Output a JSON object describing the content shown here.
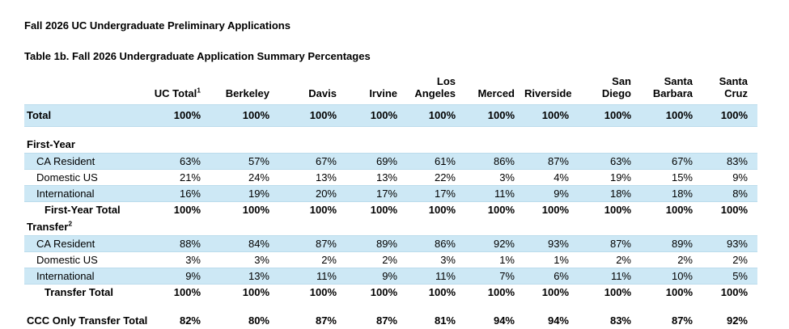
{
  "titles": {
    "report_title": "Fall 2026 UC Undergraduate Preliminary Applications",
    "table_caption": "Table 1b. Fall 2026 Undergraduate Application Summary Percentages"
  },
  "colors": {
    "row_shade": "#cde8f5",
    "row_shade_border": "#bbdcec",
    "text": "#000000",
    "background": "#ffffff"
  },
  "table": {
    "columns": [
      {
        "label": "UC Total",
        "sup": "1"
      },
      {
        "label": "Berkeley"
      },
      {
        "label": "Davis"
      },
      {
        "label": "Irvine"
      },
      {
        "label": "Los\nAngeles"
      },
      {
        "label": "Merced"
      },
      {
        "label": "Riverside"
      },
      {
        "label": "San\nDiego"
      },
      {
        "label": "Santa\nBarbara"
      },
      {
        "label": "Santa\nCruz"
      }
    ],
    "rows": [
      {
        "type": "total",
        "label": "Total",
        "values": [
          "100%",
          "100%",
          "100%",
          "100%",
          "100%",
          "100%",
          "100%",
          "100%",
          "100%",
          "100%"
        ]
      },
      {
        "type": "spacer",
        "size": "sm"
      },
      {
        "type": "section",
        "label": "First-Year"
      },
      {
        "type": "detail",
        "shaded": true,
        "label": "CA Resident",
        "values": [
          "63%",
          "57%",
          "67%",
          "69%",
          "61%",
          "86%",
          "87%",
          "63%",
          "67%",
          "83%"
        ]
      },
      {
        "type": "detail",
        "shaded": false,
        "label": "Domestic US",
        "values": [
          "21%",
          "24%",
          "13%",
          "13%",
          "22%",
          "3%",
          "4%",
          "19%",
          "15%",
          "9%"
        ]
      },
      {
        "type": "detail",
        "shaded": true,
        "label": "International",
        "values": [
          "16%",
          "19%",
          "20%",
          "17%",
          "17%",
          "11%",
          "9%",
          "18%",
          "18%",
          "8%"
        ]
      },
      {
        "type": "subtotal",
        "label": "First-Year Total",
        "values": [
          "100%",
          "100%",
          "100%",
          "100%",
          "100%",
          "100%",
          "100%",
          "100%",
          "100%",
          "100%"
        ]
      },
      {
        "type": "section",
        "label": "Transfer",
        "sup": "2"
      },
      {
        "type": "detail",
        "shaded": true,
        "label": "CA Resident",
        "values": [
          "88%",
          "84%",
          "87%",
          "89%",
          "86%",
          "92%",
          "93%",
          "87%",
          "89%",
          "93%"
        ]
      },
      {
        "type": "detail",
        "shaded": false,
        "label": "Domestic US",
        "values": [
          "3%",
          "3%",
          "2%",
          "2%",
          "3%",
          "1%",
          "1%",
          "2%",
          "2%",
          "2%"
        ]
      },
      {
        "type": "detail",
        "shaded": true,
        "label": "International",
        "values": [
          "9%",
          "13%",
          "11%",
          "9%",
          "11%",
          "7%",
          "6%",
          "11%",
          "10%",
          "5%"
        ]
      },
      {
        "type": "subtotal",
        "label": "Transfer Total",
        "values": [
          "100%",
          "100%",
          "100%",
          "100%",
          "100%",
          "100%",
          "100%",
          "100%",
          "100%",
          "100%"
        ]
      },
      {
        "type": "spacer",
        "size": "lg"
      },
      {
        "type": "grand",
        "label": "CCC Only Transfer Total",
        "values": [
          "82%",
          "80%",
          "87%",
          "87%",
          "81%",
          "94%",
          "94%",
          "83%",
          "87%",
          "92%"
        ]
      }
    ]
  }
}
